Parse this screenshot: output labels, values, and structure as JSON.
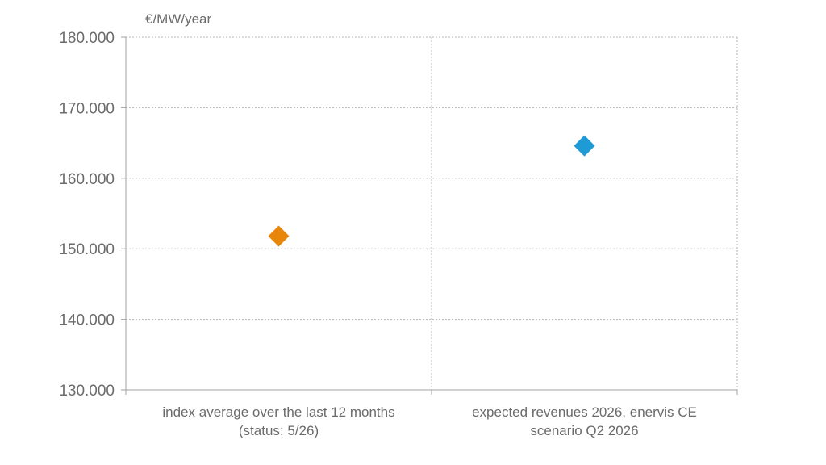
{
  "chart_data": {
    "type": "scatter",
    "title": "",
    "ylabel": "€/MW/year",
    "xlabel": "",
    "categories": [
      [
        "index average over the last 12 months",
        "(status: 5/26)"
      ],
      [
        "expected revenues 2026, enervis CE",
        "scenario Q2 2026"
      ]
    ],
    "values": [
      151800,
      164600
    ],
    "point_colors": [
      "#e8860c",
      "#1e9ad6"
    ],
    "ylim": [
      130000,
      180000
    ],
    "yticks": [
      130000,
      140000,
      150000,
      160000,
      170000,
      180000
    ],
    "ytick_labels": [
      "130.000",
      "140.000",
      "150.000",
      "160.000",
      "170.000",
      "180.000"
    ],
    "grid": true,
    "legend": "none"
  }
}
